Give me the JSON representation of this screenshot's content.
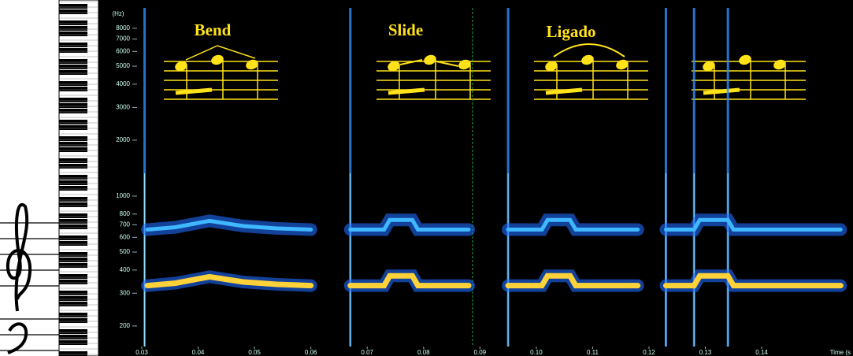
{
  "chart_data": {
    "type": "spectrogram",
    "y_label": "(Hz)",
    "x_label": "Time (s",
    "yscale": "log",
    "ylim": [
      155,
      10300
    ],
    "yticks": [
      200,
      300,
      400,
      500,
      600,
      700,
      800,
      1000,
      2000,
      3000,
      4000,
      5000,
      6000,
      7000,
      8000
    ],
    "xlim": [
      0.0293,
      0.1555
    ],
    "xticks": [
      0.03,
      0.04,
      0.05,
      0.06,
      0.07,
      0.08,
      0.09,
      {
        "value": 0.1,
        "label": "0.10"
      },
      0.11,
      0.12,
      0.13,
      0.14
    ],
    "annotations": [
      "Bend",
      "Slide",
      "Ligado"
    ],
    "x": [
      0.031,
      0.036,
      0.042,
      0.048,
      0.054,
      0.06,
      null,
      0.067,
      0.073,
      0.074,
      0.078,
      0.079,
      0.088,
      null,
      0.095,
      0.101,
      0.102,
      0.106,
      0.107,
      0.118,
      null,
      0.123,
      0.128,
      0.129,
      0.134,
      0.135,
      0.154
    ],
    "series": [
      {
        "color": "#ffd23a",
        "values": [
          330,
          340,
          368,
          345,
          335,
          330,
          null,
          330,
          330,
          372,
          372,
          330,
          330,
          null,
          330,
          330,
          372,
          372,
          330,
          330,
          null,
          330,
          330,
          372,
          372,
          330,
          330
        ]
      },
      {
        "color": "#3fb8ff",
        "values": [
          660,
          680,
          736,
          690,
          670,
          660,
          null,
          660,
          660,
          744,
          744,
          660,
          660,
          null,
          660,
          660,
          744,
          744,
          660,
          660,
          null,
          660,
          660,
          744,
          744,
          660,
          660
        ]
      }
    ]
  }
}
